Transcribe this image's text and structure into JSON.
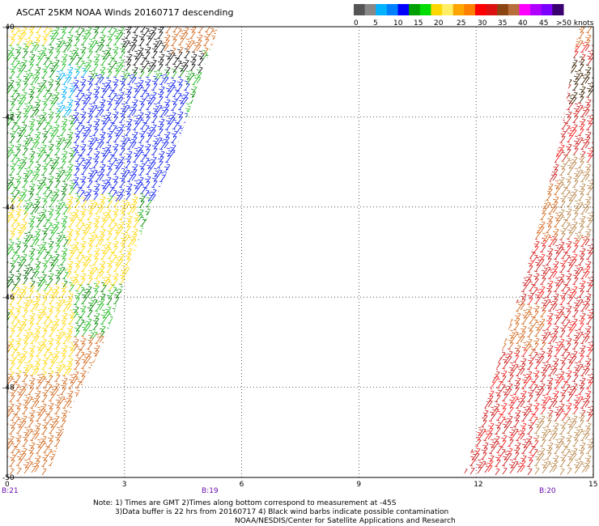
{
  "header": {
    "title": "ASCAT 25KM NOAA Winds 20160717 descending"
  },
  "legend": {
    "colors": [
      "#555555",
      "#888888",
      "#00b2ff",
      "#0080ff",
      "#0000ff",
      "#00a000",
      "#00dd00",
      "#ffd700",
      "#ffee66",
      "#ffa500",
      "#ff7f00",
      "#ff0000",
      "#dd1111",
      "#8b4513",
      "#b86e3a",
      "#ff00ff",
      "#b000ff",
      "#7b00ff",
      "#3a0070"
    ],
    "labels": [
      "0",
      "5",
      "10",
      "15",
      "20",
      "25",
      "30",
      "35",
      "40",
      "45",
      ">50 knots"
    ]
  },
  "map": {
    "lat_labels": [
      "-40",
      "-42",
      "-44",
      "-46",
      "-48",
      "-50"
    ],
    "lon_labels": [
      "0",
      "3",
      "6",
      "9",
      "12",
      "15"
    ],
    "time_labels": [
      "B:21",
      "B:19",
      "B:20"
    ]
  },
  "footer": {
    "line1": "Note: 1) Times are GMT 2)Times along bottom correspond to measurement at -45S",
    "line2": "3)Data buffer is 22 hrs from 20160717 4) Black wind barbs indicate possible contamination",
    "line3": "NOAA/NESDIS/Center for Satellite Applications and Research"
  }
}
